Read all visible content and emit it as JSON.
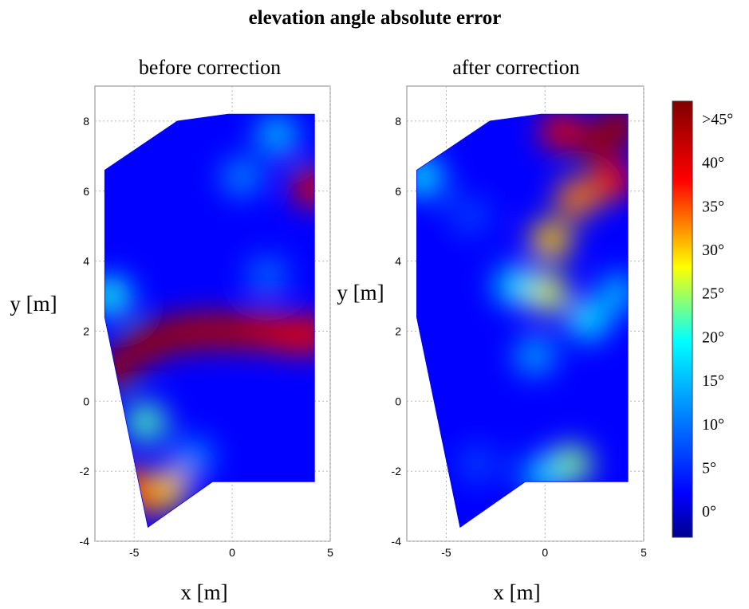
{
  "figure": {
    "title": "elevation angle absolute error"
  },
  "colors": {
    "frame": "#888888",
    "grid": "#b5b5b5",
    "text": "#000000",
    "colormap": [
      "#00008f",
      "#0000ff",
      "#00ffff",
      "#ffff00",
      "#ff0000",
      "#800000"
    ]
  },
  "chart_data": [
    {
      "type": "heatmap",
      "title": "before correction",
      "xlabel": "x [m]",
      "ylabel": "y [m]",
      "xlim": [
        -7,
        5
      ],
      "ylim": [
        -4,
        9
      ],
      "x_ticks": [
        -5,
        0,
        5
      ],
      "y_ticks": [
        -4,
        -2,
        0,
        2,
        4,
        6,
        8
      ],
      "grid": true,
      "value_unit": "degrees",
      "domain_outline": [
        [
          -6.5,
          6.6
        ],
        [
          -2.8,
          8.0
        ],
        [
          -0.2,
          8.2
        ],
        [
          4.2,
          8.2
        ],
        [
          4.2,
          -2.3
        ],
        [
          -1.0,
          -2.3
        ],
        [
          -4.3,
          -3.6
        ],
        [
          -6.5,
          2.4
        ]
      ],
      "hotspots": [
        {
          "x": -6.0,
          "y": 0.9,
          "value": 45
        },
        {
          "x": -4.5,
          "y": 1.6,
          "value": 45
        },
        {
          "x": -3.0,
          "y": 1.9,
          "value": 45
        },
        {
          "x": -1.5,
          "y": 2.0,
          "value": 44
        },
        {
          "x": 0.0,
          "y": 2.0,
          "value": 44
        },
        {
          "x": 1.5,
          "y": 2.0,
          "value": 42
        },
        {
          "x": 3.0,
          "y": 1.9,
          "value": 40
        },
        {
          "x": 4.1,
          "y": 1.9,
          "value": 40
        },
        {
          "x": -5.5,
          "y": -2.4,
          "value": 36
        },
        {
          "x": -4.2,
          "y": -2.7,
          "value": 38
        },
        {
          "x": -3.3,
          "y": -2.5,
          "value": 30
        },
        {
          "x": -4.4,
          "y": -0.6,
          "value": 22
        },
        {
          "x": -6.2,
          "y": 3.0,
          "value": 20
        },
        {
          "x": 4.1,
          "y": 6.1,
          "value": 40
        },
        {
          "x": 2.3,
          "y": 7.6,
          "value": 15
        },
        {
          "x": 0.5,
          "y": 6.4,
          "value": 11
        },
        {
          "x": 1.8,
          "y": 3.6,
          "value": 9
        },
        {
          "x": -2.0,
          "y": -1.6,
          "value": 11
        }
      ]
    },
    {
      "type": "heatmap",
      "title": "after correction",
      "xlabel": "x [m]",
      "ylabel": "y [m]",
      "xlim": [
        -7,
        5
      ],
      "ylim": [
        -4,
        9
      ],
      "x_ticks": [
        -5,
        0,
        5
      ],
      "y_ticks": [
        -4,
        -2,
        0,
        2,
        4,
        6,
        8
      ],
      "grid": true,
      "value_unit": "degrees",
      "domain_outline": [
        [
          -6.5,
          6.6
        ],
        [
          -2.8,
          8.0
        ],
        [
          -0.2,
          8.2
        ],
        [
          4.2,
          8.2
        ],
        [
          4.2,
          -2.3
        ],
        [
          -1.0,
          -2.3
        ],
        [
          -4.3,
          -3.6
        ],
        [
          -6.5,
          2.4
        ]
      ],
      "hotspots": [
        {
          "x": 0.8,
          "y": 7.7,
          "value": 40
        },
        {
          "x": 2.7,
          "y": 7.4,
          "value": 45
        },
        {
          "x": 3.8,
          "y": 7.9,
          "value": 45
        },
        {
          "x": 3.4,
          "y": 6.3,
          "value": 38
        },
        {
          "x": 1.6,
          "y": 5.8,
          "value": 33
        },
        {
          "x": 0.3,
          "y": 4.6,
          "value": 30
        },
        {
          "x": 0.1,
          "y": 3.1,
          "value": 27
        },
        {
          "x": -1.5,
          "y": 3.3,
          "value": 18
        },
        {
          "x": 2.2,
          "y": 2.3,
          "value": 18
        },
        {
          "x": 3.7,
          "y": 3.1,
          "value": 14
        },
        {
          "x": -0.5,
          "y": 1.3,
          "value": 13
        },
        {
          "x": 1.3,
          "y": -1.8,
          "value": 24
        },
        {
          "x": -0.1,
          "y": -2.1,
          "value": 16
        },
        {
          "x": -6.2,
          "y": 6.4,
          "value": 18
        },
        {
          "x": -3.8,
          "y": 5.3,
          "value": 6
        },
        {
          "x": -3.4,
          "y": -1.8,
          "value": 6
        }
      ]
    }
  ],
  "colorbar": {
    "range": [
      -3,
      47
    ],
    "ticks": [
      {
        "value": 0,
        "label": "0°"
      },
      {
        "value": 5,
        "label": "5°"
      },
      {
        "value": 10,
        "label": "10°"
      },
      {
        "value": 15,
        "label": "15°"
      },
      {
        "value": 20,
        "label": "20°"
      },
      {
        "value": 25,
        "label": "25°"
      },
      {
        "value": 30,
        "label": "30°"
      },
      {
        "value": 35,
        "label": "35°"
      },
      {
        "value": 40,
        "label": "40°"
      },
      {
        "value": 45,
        "label": ">45°"
      }
    ]
  }
}
